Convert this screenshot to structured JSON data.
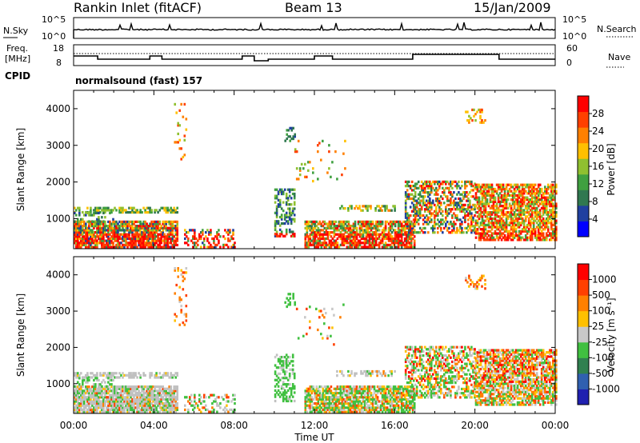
{
  "header": {
    "station": "Rankin Inlet (fitACF)",
    "beam": "Beam 13",
    "date": "15/Jan/2009"
  },
  "panels": {
    "nsky_label": "N.Sky",
    "nsky_ticks": [
      "10^5",
      "10^0"
    ],
    "nsearch_label": "N.Search",
    "nsearch_ticks": [
      "10^5",
      "10^0"
    ],
    "freq_label_line1": "Freq.",
    "freq_label_line2": "[MHz]",
    "freq_ticks": [
      "18",
      "8"
    ],
    "nave_label": "Nave",
    "nave_ticks": [
      "60",
      "0"
    ],
    "cpid_label": "CPID",
    "cpid_text": "normalsound (fast) 157"
  },
  "colors": {
    "power": [
      "#0000ff",
      "#2040a0",
      "#307850",
      "#40a040",
      "#90c030",
      "#ffc000",
      "#ff8000",
      "#ff4000",
      "#ff0000"
    ],
    "velocity": [
      "#2020b0",
      "#3060b0",
      "#308050",
      "#40c040",
      "#c8c8c8",
      "#ffc000",
      "#ff8000",
      "#ff4000",
      "#ff0000"
    ],
    "ground": "#c0c0c0"
  },
  "chart_data": [
    {
      "type": "heatmap",
      "name": "power",
      "ylabel": "Slant Range [km]",
      "xlabel": "",
      "ylim": [
        180,
        4500
      ],
      "yticks": [
        1000,
        2000,
        3000,
        4000
      ],
      "colorbar_label": "Power [dB]",
      "colorbar_ticks": [
        "28",
        "24",
        "20",
        "16",
        "12",
        "8",
        "4"
      ],
      "colorbar_range": [
        0,
        30
      ]
    },
    {
      "type": "heatmap",
      "name": "velocity",
      "ylabel": "Slant Range [km]",
      "xlabel": "Time UT",
      "ylim": [
        180,
        4500
      ],
      "yticks": [
        1000,
        2000,
        3000,
        4000
      ],
      "colorbar_label": "Velocity [m s⁻¹]",
      "colorbar_ticks": [
        "1000",
        "500",
        "100",
        "25",
        "-25",
        "-100",
        "-500",
        "-1000"
      ]
    }
  ],
  "time_axis": {
    "xlim": [
      "00:00",
      "24:00"
    ],
    "tick_labels": [
      "00:00",
      "04:00",
      "08:00",
      "12:00",
      "16:00",
      "20:00",
      "00:00"
    ],
    "tick_hours": [
      0,
      4,
      8,
      12,
      16,
      20,
      24
    ]
  }
}
